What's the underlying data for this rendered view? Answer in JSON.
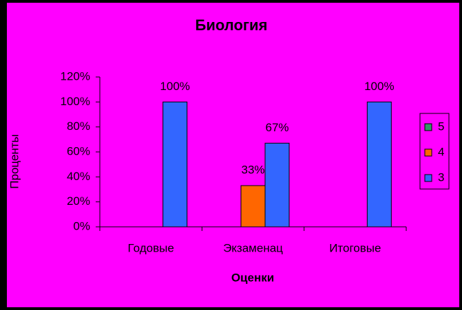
{
  "chart_data": {
    "type": "bar",
    "title": "Биология",
    "x_label": "Оценки",
    "y_label": "Проценты",
    "categories": [
      "Годовые",
      "Экзаменац",
      "Итоговые"
    ],
    "series": [
      {
        "name": "5",
        "color": "#339966",
        "values": [
          0,
          0,
          0
        ],
        "value_labels": [
          null,
          null,
          null
        ]
      },
      {
        "name": "4",
        "color": "#ff6600",
        "values": [
          0,
          33,
          0
        ],
        "value_labels": [
          null,
          "33%",
          null
        ]
      },
      {
        "name": "3",
        "color": "#3366ff",
        "values": [
          100,
          67,
          100
        ],
        "value_labels": [
          "100%",
          "67%",
          "100%"
        ]
      }
    ],
    "ylim": [
      0,
      120
    ],
    "yticks": [
      {
        "value": 0,
        "label": "0%"
      },
      {
        "value": 20,
        "label": "20%"
      },
      {
        "value": 40,
        "label": "40%"
      },
      {
        "value": 60,
        "label": "60%"
      },
      {
        "value": 80,
        "label": "80%"
      },
      {
        "value": 100,
        "label": "100%"
      },
      {
        "value": 120,
        "label": "120%"
      }
    ],
    "legend": "right"
  }
}
